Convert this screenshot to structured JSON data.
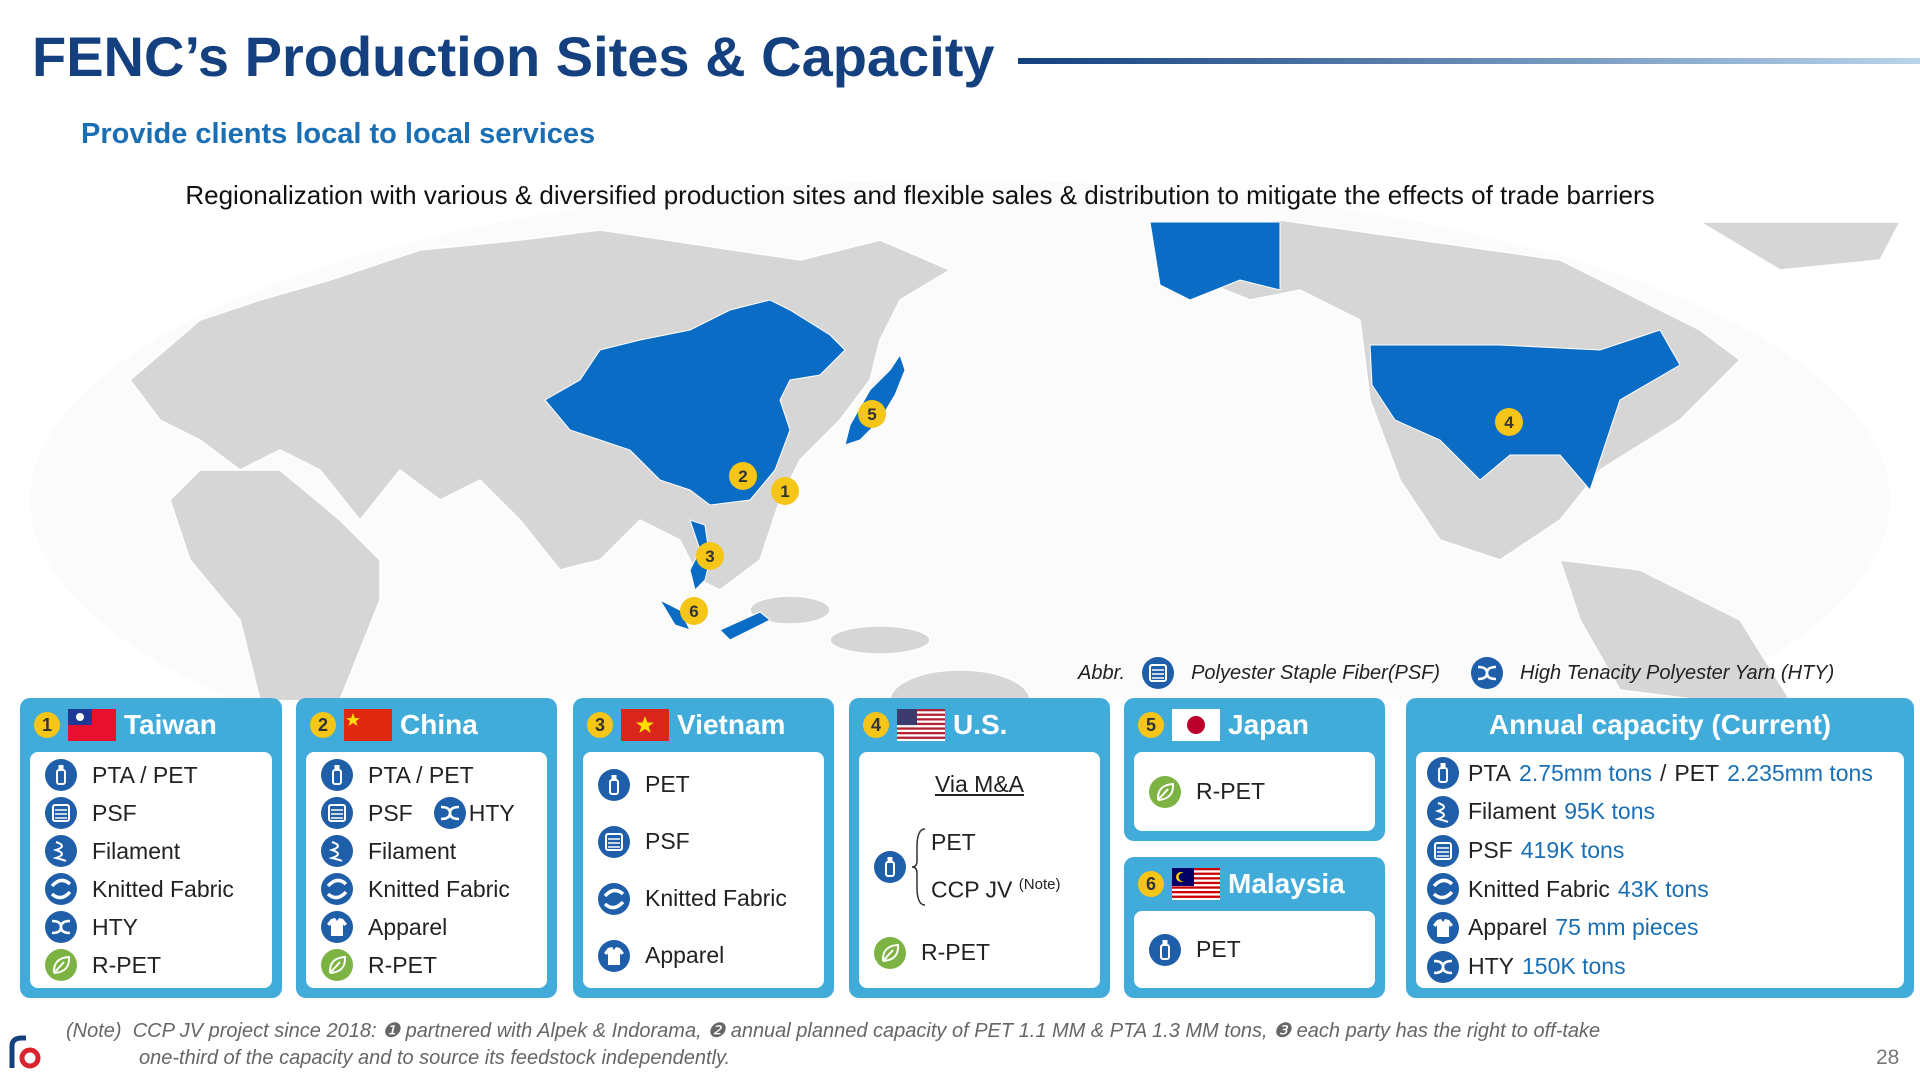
{
  "header": {
    "title": "FENC’s Production Sites & Capacity",
    "subtitle": "Provide clients local to local services",
    "tagline": "Regionalization with various & diversified production sites and flexible sales & distribution to mitigate the effects of trade barriers"
  },
  "map": {
    "markers": [
      "1",
      "2",
      "3",
      "4",
      "5",
      "6"
    ]
  },
  "abbr": {
    "label": "Abbr.",
    "items": [
      "Polyester Staple Fiber(PSF)",
      "High Tenacity Polyester Yarn (HTY)"
    ]
  },
  "sites": [
    {
      "number": "1",
      "name": "Taiwan",
      "products": [
        "PTA / PET",
        "PSF",
        "Filament",
        "Knitted Fabric",
        "HTY",
        "R-PET"
      ]
    },
    {
      "number": "2",
      "name": "China",
      "products": [
        "PTA / PET",
        "PSF",
        "HTY",
        "Filament",
        "Knitted Fabric",
        "Apparel",
        "R-PET"
      ]
    },
    {
      "number": "3",
      "name": "Vietnam",
      "products": [
        "PET",
        "PSF",
        "Knitted Fabric",
        "Apparel"
      ]
    },
    {
      "number": "4",
      "name": "U.S.",
      "via": "Via M&A",
      "products": [
        "PET",
        "CCP JV",
        "R-PET"
      ],
      "note_ref": "(Note)"
    },
    {
      "number": "5",
      "name": "Japan",
      "products": [
        "R-PET"
      ]
    },
    {
      "number": "6",
      "name": "Malaysia",
      "products": [
        "PET"
      ]
    }
  ],
  "capacity": {
    "title": "Annual capacity (Current)",
    "items": [
      [
        "PTA",
        "2.75mm tons",
        "/",
        "PET",
        "2.235mm tons"
      ],
      [
        "Filament",
        "95K tons"
      ],
      [
        "PSF",
        "419K tons"
      ],
      [
        "Knitted Fabric",
        "43K tons"
      ],
      [
        "Apparel",
        "75 mm pieces"
      ],
      [
        "HTY",
        "150K tons"
      ]
    ]
  },
  "note": {
    "label": "(Note)",
    "lines": [
      "CCP JV project since 2018: ❶ partnered with Alpek & Indorama, ❷ annual planned capacity of PET 1.1 MM & PTA 1.3 MM tons, ❸ each party has the right to off-take",
      "one-third of the capacity and to source its feedstock independently."
    ]
  },
  "page_number": "28"
}
